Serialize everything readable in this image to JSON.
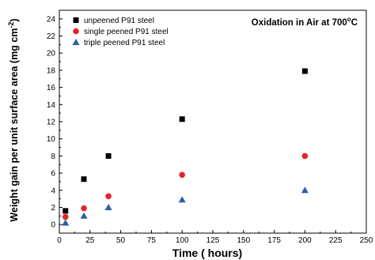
{
  "chart_data": {
    "type": "scatter",
    "annotation": {
      "text": "Oxidation in Air at 700",
      "sup": "o",
      "suffix": "C"
    },
    "xlabel": "Time ( hours)",
    "ylabel": {
      "main": "Weight gain per unit surface area (mg cm",
      "sup": "-2",
      "close": ")"
    },
    "xlim": [
      0,
      250
    ],
    "ylim": [
      -1,
      25
    ],
    "x_ticks": [
      0,
      25,
      50,
      75,
      100,
      125,
      150,
      175,
      200,
      225,
      250
    ],
    "y_ticks": [
      0,
      2,
      4,
      6,
      8,
      10,
      12,
      14,
      16,
      18,
      20,
      22,
      24
    ],
    "grid": false,
    "legend_position": "top-left",
    "series": [
      {
        "name": "unpeened P91 steel",
        "marker": "square",
        "color": "#000000",
        "points": [
          [
            5,
            1.6
          ],
          [
            20,
            5.3
          ],
          [
            40,
            8.0
          ],
          [
            100,
            12.3
          ],
          [
            200,
            17.9
          ]
        ]
      },
      {
        "name": "single peened P91 steel",
        "marker": "circle",
        "color": "#e8222a",
        "points": [
          [
            5,
            0.9
          ],
          [
            20,
            1.9
          ],
          [
            40,
            3.3
          ],
          [
            100,
            5.8
          ],
          [
            200,
            8.0
          ]
        ]
      },
      {
        "name": "triple peened P91 steel",
        "marker": "triangle",
        "color": "#2f5fa8",
        "points": [
          [
            5,
            0.2
          ],
          [
            20,
            1.0
          ],
          [
            40,
            2.0
          ],
          [
            100,
            2.9
          ],
          [
            200,
            4.0
          ]
        ]
      }
    ]
  }
}
